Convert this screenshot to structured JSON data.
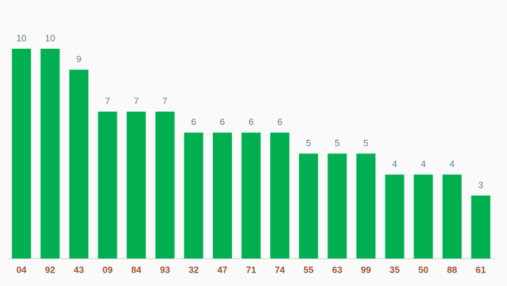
{
  "chart_data": {
    "type": "bar",
    "categories": [
      "04",
      "92",
      "43",
      "09",
      "84",
      "93",
      "32",
      "47",
      "71",
      "74",
      "55",
      "63",
      "99",
      "35",
      "50",
      "88",
      "61"
    ],
    "values": [
      10,
      10,
      9,
      7,
      7,
      7,
      6,
      6,
      6,
      6,
      5,
      5,
      5,
      4,
      4,
      4,
      3
    ],
    "color": "#00b050"
  }
}
